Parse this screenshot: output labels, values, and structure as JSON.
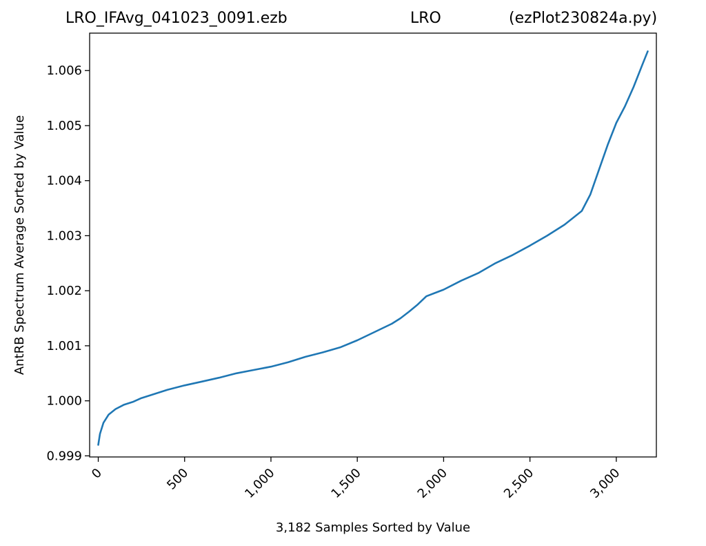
{
  "header": {
    "title_left": "LRO_IFAvg_041023_0091.ezb",
    "title_center": "LRO",
    "title_right": "(ezPlot230824a.py)"
  },
  "chart_data": {
    "type": "line",
    "title": "LRO_IFAvg_041023_0091.ezb LRO (ezPlot230824a.py)",
    "xlabel": "3,182 Samples Sorted by Value",
    "ylabel": "AntRB Spectrum Average Sorted by Value",
    "xlim": [
      -50,
      3232
    ],
    "ylim": [
      0.99898,
      1.00668
    ],
    "xticks": [
      0,
      500,
      1000,
      1500,
      2000,
      2500,
      3000
    ],
    "xtick_labels": [
      "0",
      "500",
      "1,000",
      "1,500",
      "2,000",
      "2,500",
      "3,000"
    ],
    "yticks": [
      0.999,
      1.0,
      1.001,
      1.002,
      1.003,
      1.004,
      1.005,
      1.006
    ],
    "ytick_labels": [
      "0.999",
      "1.000",
      "1.001",
      "1.002",
      "1.003",
      "1.004",
      "1.005",
      "1.006"
    ],
    "grid": false,
    "series": [
      {
        "color": "#1f77b4",
        "x": [
          0,
          10,
          30,
          60,
          100,
          150,
          200,
          250,
          300,
          400,
          500,
          600,
          700,
          800,
          900,
          1000,
          1100,
          1200,
          1300,
          1400,
          1500,
          1600,
          1700,
          1750,
          1800,
          1850,
          1900,
          1950,
          2000,
          2100,
          2200,
          2300,
          2400,
          2500,
          2600,
          2700,
          2800,
          2850,
          2900,
          2950,
          3000,
          3050,
          3100,
          3150,
          3182
        ],
        "y": [
          0.9992,
          0.9994,
          0.9996,
          0.99975,
          0.99985,
          0.99993,
          0.99998,
          1.00005,
          1.0001,
          1.0002,
          1.00028,
          1.00035,
          1.00042,
          1.0005,
          1.00056,
          1.00062,
          1.0007,
          1.0008,
          1.00088,
          1.00097,
          1.0011,
          1.00125,
          1.0014,
          1.0015,
          1.00162,
          1.00175,
          1.0019,
          1.00196,
          1.00202,
          1.00218,
          1.00232,
          1.0025,
          1.00265,
          1.00282,
          1.003,
          1.0032,
          1.00345,
          1.00375,
          1.0042,
          1.00465,
          1.00505,
          1.00535,
          1.0057,
          1.0061,
          1.00635
        ]
      }
    ]
  }
}
